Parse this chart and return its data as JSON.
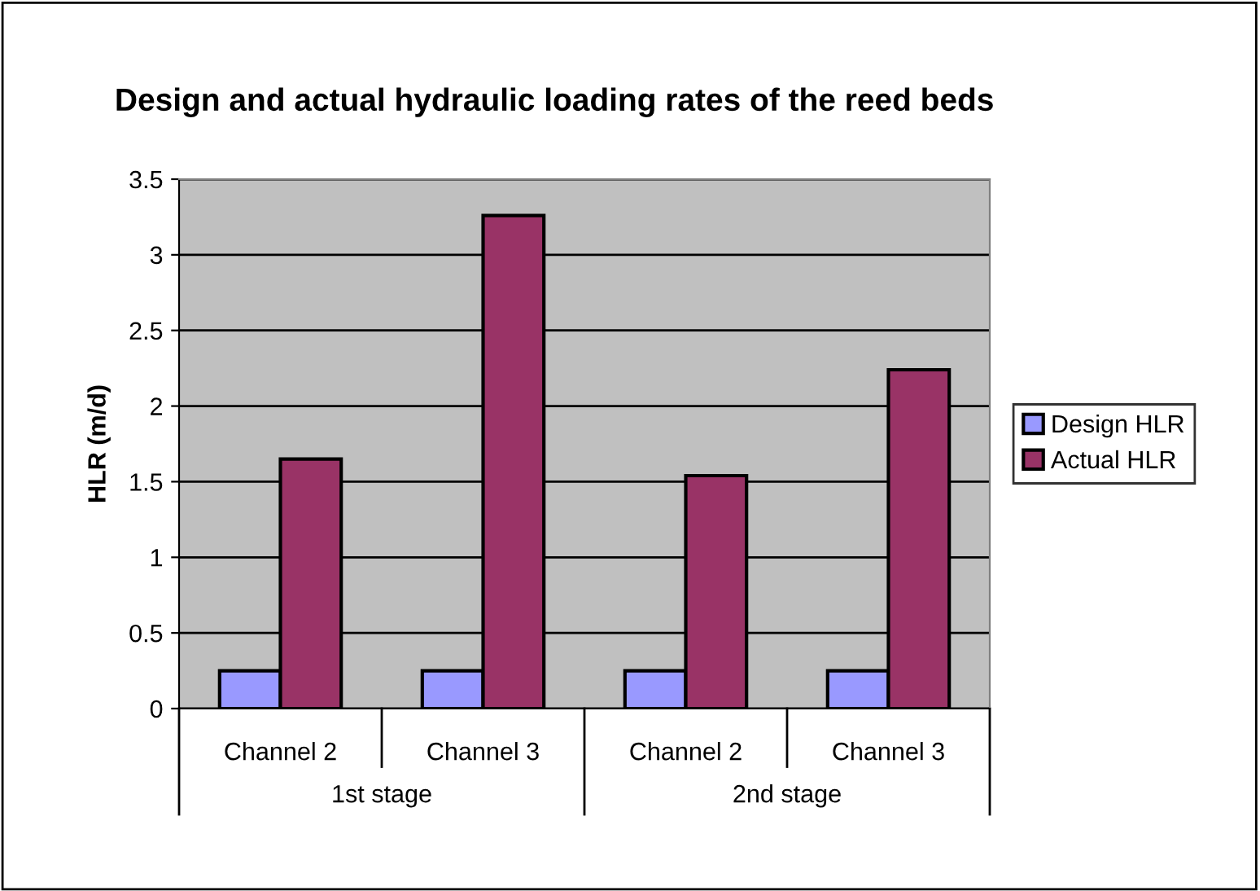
{
  "chart_data": {
    "type": "bar",
    "title": "Design and actual hydraulic loading rates of the reed beds",
    "ylabel": "HLR (m/d)",
    "categories": [
      "Channel 2",
      "Channel 3",
      "Channel 2",
      "Channel 3"
    ],
    "annotations": [
      "1st stage",
      "2nd stage"
    ],
    "series": [
      {
        "name": "Design HLR",
        "color": "#9999ff",
        "values": [
          0.25,
          0.25,
          0.25,
          0.25
        ]
      },
      {
        "name": "Actual HLR",
        "color": "#993366",
        "values": [
          1.65,
          3.26,
          1.54,
          2.24
        ]
      }
    ],
    "ylim": [
      0,
      3.5
    ],
    "yticks": [
      0,
      0.5,
      1,
      1.5,
      2,
      2.5,
      3,
      3.5
    ],
    "grid": "y",
    "legend": "right"
  }
}
